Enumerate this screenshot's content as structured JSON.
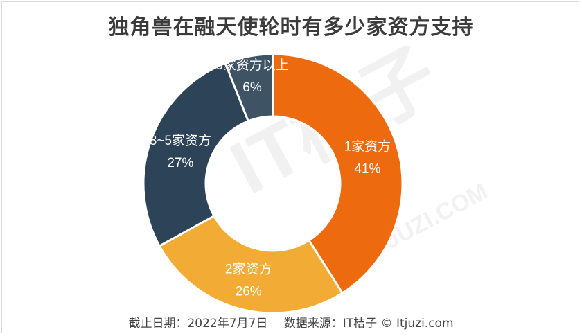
{
  "title": "独角兽在融天使轮时有多少家资方支持",
  "footer": {
    "date_text": "截止日期：2022年7月7日",
    "source_text": "数据来源：IT桔子 © Itjuzi.com"
  },
  "watermark": {
    "brand": "IT桔子",
    "domain": "ITJUZI.COM"
  },
  "chart_data": {
    "type": "pie",
    "donut": true,
    "title": "独角兽在融天使轮时有多少家资方支持",
    "categories": [
      "1家资方",
      "2家资方",
      "3~5家资方",
      "6家资方以上"
    ],
    "values": [
      41,
      26,
      27,
      6
    ],
    "labels": [
      "41%",
      "26%",
      "27%",
      "6%"
    ],
    "colors": [
      "#ee6a0f",
      "#f2ac35",
      "#2d4357",
      "#3e5465"
    ],
    "start_angle_deg": 0,
    "direction": "clockwise"
  }
}
